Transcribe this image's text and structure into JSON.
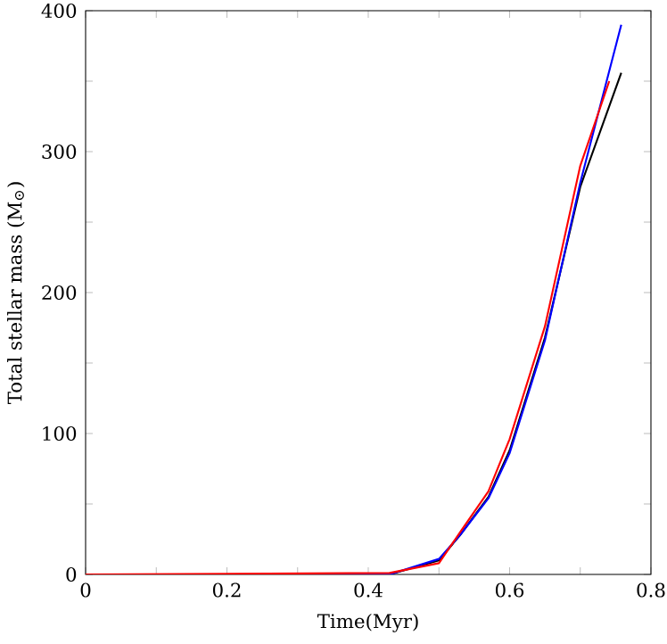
{
  "chart_data": {
    "type": "line",
    "xlabel": "Time(Myr)",
    "ylabel": "Total stellar mass (M$_{⊙}$)",
    "xlim": [
      0,
      0.8
    ],
    "ylim": [
      0,
      400
    ],
    "xticks": [
      0,
      {
        "value": 0.1,
        "label": null
      },
      0.2,
      {
        "value": 0.3,
        "label": null
      },
      0.4,
      {
        "value": 0.5,
        "label": null
      },
      0.6,
      {
        "value": 0.7,
        "label": null
      },
      0.8
    ],
    "yticks": [
      0,
      {
        "value": 50,
        "label": null
      },
      100,
      {
        "value": 150,
        "label": null
      },
      200,
      {
        "value": 250,
        "label": null
      },
      300,
      {
        "value": 350,
        "label": null
      },
      400
    ],
    "marker": "none",
    "line_style": "solid",
    "series": [
      {
        "color": "#000000",
        "x": [
          0,
          0.43,
          0.5,
          0.53,
          0.57,
          0.6,
          0.65,
          0.7,
          0.758
        ],
        "values": [
          0,
          0,
          10,
          28,
          55,
          88,
          168,
          275,
          356
        ]
      },
      {
        "color": "#0000ff",
        "x": [
          0,
          0.43,
          0.5,
          0.53,
          0.57,
          0.6,
          0.65,
          0.7,
          0.758
        ],
        "values": [
          0,
          0,
          11,
          28,
          54,
          86,
          166,
          278,
          390
        ]
      },
      {
        "color": "#ff0000",
        "x": [
          0,
          0.43,
          0.5,
          0.53,
          0.57,
          0.6,
          0.65,
          0.7,
          0.741
        ],
        "values": [
          0,
          1,
          8,
          30,
          59,
          96,
          176,
          290,
          350
        ]
      }
    ]
  }
}
